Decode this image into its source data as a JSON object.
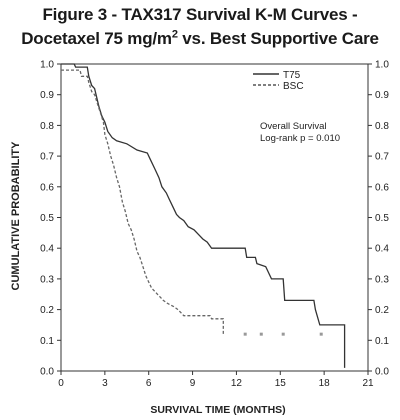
{
  "figure": {
    "title_line1": "Figure 3 - TAX317 Survival K-M Curves -",
    "title_line2_pre": "Docetaxel 75 mg/m",
    "title_line2_sup": "2",
    "title_line2_post": " vs. Best Supportive Care"
  },
  "chart_data": {
    "type": "line",
    "xlabel": "SURVIVAL TIME (MONTHS)",
    "ylabel": "CUMULATIVE PROBABILITY",
    "xlim": [
      0,
      21
    ],
    "ylim": [
      0,
      1.0
    ],
    "x_ticks": [
      "0",
      "3",
      "6",
      "9",
      "12",
      "15",
      "18",
      "21"
    ],
    "y_ticks": [
      "0.0",
      "0.1",
      "0.2",
      "0.3",
      "0.4",
      "0.5",
      "0.6",
      "0.7",
      "0.8",
      "0.9",
      "1.0"
    ],
    "grid": false,
    "legend_position": "top-right",
    "annotation_lines": [
      "Overall Survival",
      "Log-rank p = 0.010"
    ],
    "series": [
      {
        "name": "T75",
        "style": "solid",
        "color": "#333333",
        "points": [
          [
            0,
            1.0
          ],
          [
            0.9,
            1.0
          ],
          [
            1.0,
            0.99
          ],
          [
            1.8,
            0.99
          ],
          [
            1.9,
            0.96
          ],
          [
            2.1,
            0.93
          ],
          [
            2.3,
            0.92
          ],
          [
            2.6,
            0.86
          ],
          [
            2.8,
            0.83
          ],
          [
            3.0,
            0.81
          ],
          [
            3.2,
            0.78
          ],
          [
            3.5,
            0.76
          ],
          [
            3.8,
            0.75
          ],
          [
            4.5,
            0.74
          ],
          [
            5.2,
            0.72
          ],
          [
            5.9,
            0.71
          ],
          [
            6.1,
            0.69
          ],
          [
            6.4,
            0.66
          ],
          [
            6.7,
            0.63
          ],
          [
            6.9,
            0.6
          ],
          [
            7.2,
            0.58
          ],
          [
            7.4,
            0.56
          ],
          [
            7.7,
            0.53
          ],
          [
            7.9,
            0.51
          ],
          [
            8.1,
            0.5
          ],
          [
            8.4,
            0.49
          ],
          [
            8.7,
            0.47
          ],
          [
            9.1,
            0.46
          ],
          [
            9.5,
            0.44
          ],
          [
            9.7,
            0.43
          ],
          [
            10.0,
            0.42
          ],
          [
            10.3,
            0.4
          ],
          [
            12.6,
            0.4
          ],
          [
            12.7,
            0.37
          ],
          [
            13.3,
            0.37
          ],
          [
            13.4,
            0.35
          ],
          [
            14.0,
            0.34
          ],
          [
            14.4,
            0.3
          ],
          [
            15.2,
            0.3
          ],
          [
            15.3,
            0.23
          ],
          [
            17.3,
            0.23
          ],
          [
            17.4,
            0.2
          ],
          [
            17.7,
            0.15
          ],
          [
            19.4,
            0.15
          ],
          [
            19.4,
            0.01
          ]
        ]
      },
      {
        "name": "BSC",
        "style": "dashed",
        "color": "#666666",
        "points": [
          [
            0,
            0.98
          ],
          [
            1.3,
            0.98
          ],
          [
            1.4,
            0.96
          ],
          [
            1.8,
            0.96
          ],
          [
            1.9,
            0.94
          ],
          [
            2.1,
            0.91
          ],
          [
            2.3,
            0.9
          ],
          [
            2.5,
            0.87
          ],
          [
            2.7,
            0.84
          ],
          [
            2.9,
            0.81
          ],
          [
            3.0,
            0.77
          ],
          [
            3.2,
            0.74
          ],
          [
            3.4,
            0.7
          ],
          [
            3.6,
            0.67
          ],
          [
            3.8,
            0.63
          ],
          [
            4.0,
            0.6
          ],
          [
            4.2,
            0.55
          ],
          [
            4.4,
            0.52
          ],
          [
            4.6,
            0.48
          ],
          [
            4.8,
            0.46
          ],
          [
            5.0,
            0.43
          ],
          [
            5.2,
            0.39
          ],
          [
            5.4,
            0.37
          ],
          [
            5.6,
            0.34
          ],
          [
            5.8,
            0.31
          ],
          [
            6.0,
            0.29
          ],
          [
            6.2,
            0.27
          ],
          [
            6.4,
            0.26
          ],
          [
            6.6,
            0.25
          ],
          [
            6.8,
            0.24
          ],
          [
            7.0,
            0.23
          ],
          [
            7.3,
            0.22
          ],
          [
            7.7,
            0.21
          ],
          [
            8.0,
            0.2
          ],
          [
            8.4,
            0.18
          ],
          [
            10.2,
            0.18
          ],
          [
            10.3,
            0.17
          ],
          [
            11.1,
            0.17
          ],
          [
            11.1,
            0.12
          ]
        ]
      }
    ],
    "bsc_censor_marks_x": [
      12.6,
      13.7,
      15.2,
      17.8
    ]
  }
}
